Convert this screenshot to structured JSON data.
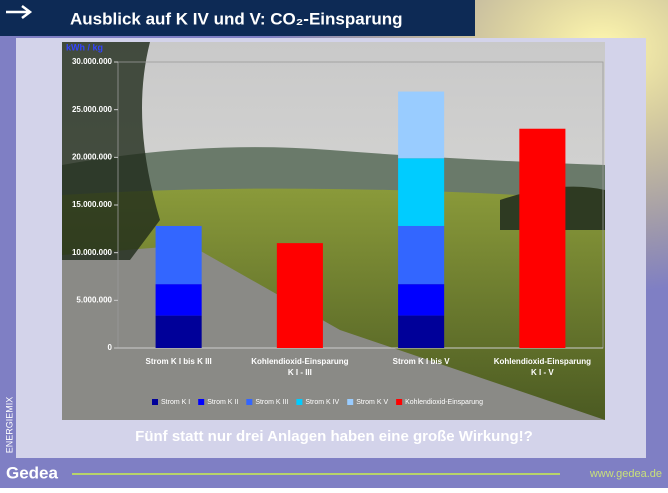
{
  "slide": {
    "title": "Ausblick auf K IV und V: CO₂-Einsparung",
    "side_text": "ENERGIEMIX",
    "brand": "Gedea",
    "url": "www.gedea.de",
    "caption": "Fünf statt nur drei Anlagen haben eine große Wirkung!?"
  },
  "chart_data": {
    "type": "stacked_bar",
    "y_label": "kWh / kg",
    "categories": [
      "Strom K I bis K III",
      "Kohlendioxid-Einsparung\nK I - III",
      "Strom K I bis V",
      "Kohlendioxid-Einsparung\nK I - V"
    ],
    "series": [
      {
        "name": "Strom K I",
        "color": "#000099",
        "values": [
          3400000,
          null,
          3400000,
          null
        ]
      },
      {
        "name": "Strom K II",
        "color": "#0000ff",
        "values": [
          3300000,
          null,
          3300000,
          null
        ]
      },
      {
        "name": "Strom K III",
        "color": "#3366ff",
        "values": [
          6100000,
          null,
          6100000,
          null
        ]
      },
      {
        "name": "Strom K IV",
        "color": "#00ccff",
        "values": [
          null,
          null,
          7100000,
          null
        ]
      },
      {
        "name": "Strom K V",
        "color": "#99ccff",
        "values": [
          null,
          null,
          7000000,
          null
        ]
      },
      {
        "name": "Kohlendioxid-Einsparung",
        "color": "#ff0000",
        "values": [
          null,
          11000000,
          null,
          23000000
        ]
      }
    ],
    "ylim": [
      0,
      30000000
    ],
    "yticks": [
      {
        "value": 0,
        "label": "0"
      },
      {
        "value": 5000000,
        "label": "5.000.000"
      },
      {
        "value": 10000000,
        "label": "10.000.000"
      },
      {
        "value": 15000000,
        "label": "15.000.000"
      },
      {
        "value": 20000000,
        "label": "20.000.000"
      },
      {
        "value": 25000000,
        "label": "25.000.000"
      },
      {
        "value": 30000000,
        "label": "30.000.000"
      }
    ],
    "grid": false,
    "legend": "bottom"
  }
}
